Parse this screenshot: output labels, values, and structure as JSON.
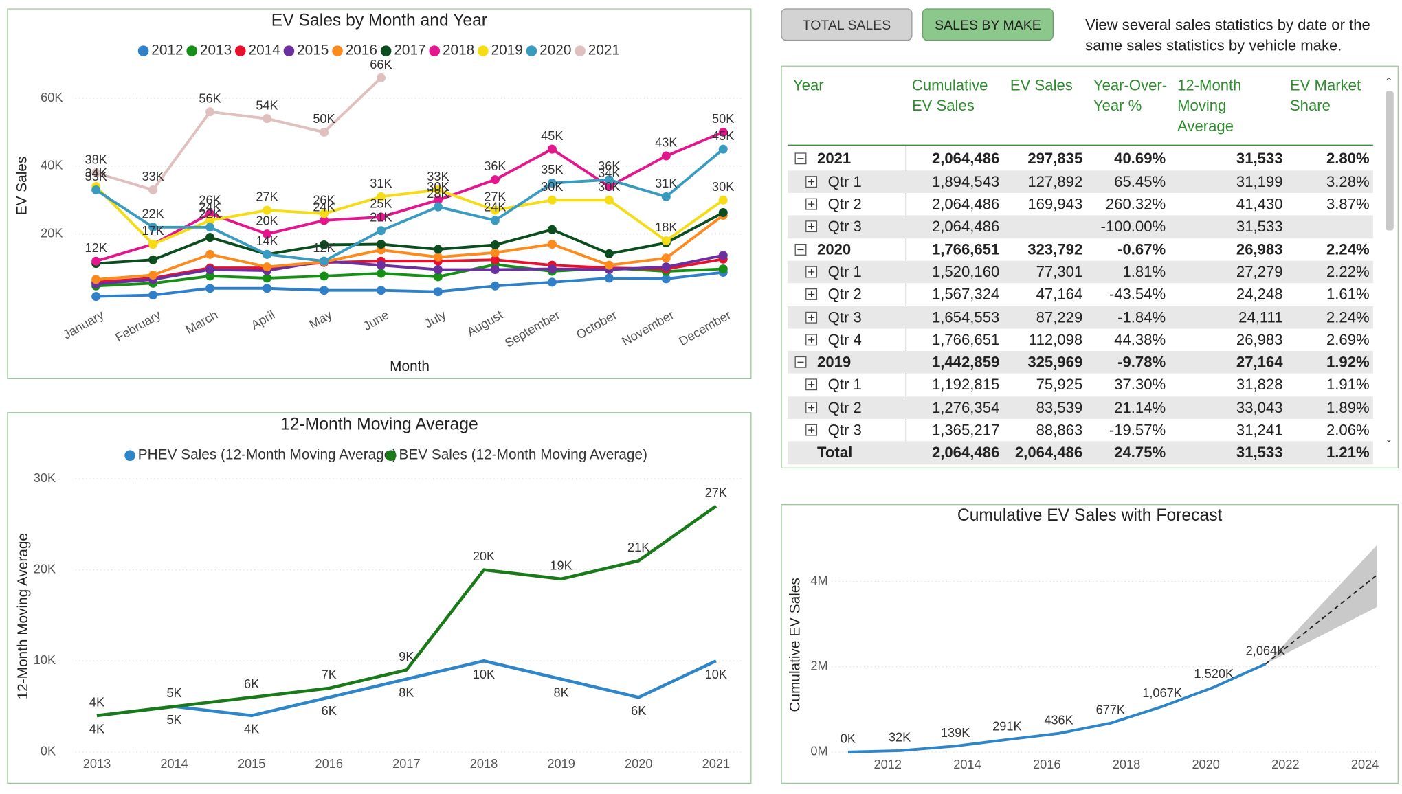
{
  "chart_data": [
    {
      "type": "line",
      "title": "EV Sales by Month and Year",
      "x_label": "Month",
      "y_label": "EV Sales",
      "markers": true,
      "grid": true,
      "categories": [
        "January",
        "February",
        "March",
        "April",
        "May",
        "June",
        "July",
        "August",
        "September",
        "October",
        "November",
        "December"
      ],
      "ylim": [
        0,
        70000
      ],
      "yticks": [
        {
          "value": 20000,
          "label": "20K"
        },
        {
          "value": 40000,
          "label": "40K"
        },
        {
          "value": 60000,
          "label": "60K"
        }
      ],
      "series": [
        {
          "name": "2012",
          "color": "#2f80c8",
          "values": [
            1600,
            2000,
            4000,
            4000,
            3400,
            3400,
            3000,
            4700,
            5800,
            7000,
            6800,
            8700
          ]
        },
        {
          "name": "2013",
          "color": "#168f16",
          "values": [
            4700,
            5500,
            7600,
            7000,
            7600,
            8400,
            7400,
            11000,
            9000,
            10000,
            9000,
            9700
          ]
        },
        {
          "name": "2014",
          "color": "#e8112d",
          "values": [
            5800,
            7000,
            10000,
            10000,
            11600,
            12000,
            12000,
            12400,
            10800,
            10000,
            9700,
            12600
          ]
        },
        {
          "name": "2015",
          "color": "#6b2fa0",
          "values": [
            5300,
            6600,
            9500,
            9200,
            12000,
            10800,
            9500,
            9500,
            9700,
            9500,
            10300,
            13700
          ]
        },
        {
          "name": "2016",
          "color": "#fd8a1c",
          "values": [
            6600,
            7900,
            14000,
            10300,
            11800,
            15300,
            13200,
            14500,
            17000,
            10800,
            12900,
            25500
          ]
        },
        {
          "name": "2017",
          "color": "#0b4d1e",
          "values": [
            11300,
            12400,
            19000,
            14000,
            16800,
            17000,
            15500,
            16800,
            21300,
            14200,
            17400,
            26300
          ]
        },
        {
          "name": "2018",
          "color": "#e3168e",
          "values": [
            12000,
            17000,
            26000,
            20000,
            24000,
            25000,
            30000,
            36000,
            45000,
            34000,
            43000,
            50000
          ],
          "value_labels": [
            "12K",
            "17K",
            "26K",
            "20K",
            "24K",
            "25K",
            "30K",
            "36K",
            "45K",
            "34K",
            "43K",
            "50K"
          ]
        },
        {
          "name": "2019",
          "color": "#f5dc14",
          "values": [
            34000,
            17000,
            24000,
            27000,
            26000,
            31000,
            33000,
            27000,
            30000,
            30000,
            18000,
            30000
          ],
          "value_labels": [
            "34K",
            "17K",
            "24K",
            "27K",
            "26K",
            "31K",
            "33K",
            "27K",
            "30K",
            "30K",
            "18K",
            "30K"
          ]
        },
        {
          "name": "2020",
          "color": "#3a9bc0",
          "values": [
            33000,
            22000,
            22000,
            14000,
            12000,
            21000,
            28000,
            24000,
            35000,
            36000,
            31000,
            45000
          ],
          "value_labels": [
            "33K",
            "22K",
            "22K",
            "14K",
            "12K",
            "21K",
            "28K",
            "24K",
            "35K",
            "36K",
            "31K",
            "45K"
          ]
        },
        {
          "name": "2021",
          "color": "#e0c0bf",
          "values": [
            38000,
            33000,
            56000,
            54000,
            50000,
            66000,
            null,
            null,
            null,
            null,
            null,
            null
          ],
          "value_labels": [
            "38K",
            "33K",
            "56K",
            "54K",
            "50K",
            "66K",
            null,
            null,
            null,
            null,
            null,
            null
          ]
        }
      ]
    },
    {
      "type": "line",
      "title": "12-Month Moving Average",
      "y_label": "12-Month Moving Average",
      "markers": false,
      "grid": true,
      "categories": [
        "2013",
        "2014",
        "2015",
        "2016",
        "2017",
        "2018",
        "2019",
        "2020",
        "2021"
      ],
      "ylim": [
        0,
        31000
      ],
      "yticks": [
        {
          "value": 0,
          "label": "0K"
        },
        {
          "value": 10000,
          "label": "10K"
        },
        {
          "value": 20000,
          "label": "20K"
        },
        {
          "value": 30000,
          "label": "30K"
        }
      ],
      "series": [
        {
          "name": "PHEV Sales (12-Month Moving Average)",
          "color": "#2e86c8",
          "values": [
            4000,
            5000,
            4000,
            6000,
            8000,
            10000,
            8000,
            6000,
            10000
          ],
          "value_labels": [
            "4K",
            "5K",
            "4K",
            "6K",
            "8K",
            "10K",
            "8K",
            "6K",
            "10K"
          ]
        },
        {
          "name": "BEV Sales (12-Month Moving Average)",
          "color": "#1a7a1a",
          "values": [
            4000,
            5000,
            6000,
            7000,
            9000,
            20000,
            19000,
            21000,
            27000
          ],
          "value_labels": [
            "4K",
            "5K",
            "6K",
            "7K",
            "9K",
            "20K",
            "19K",
            "21K",
            "27K"
          ]
        }
      ]
    },
    {
      "type": "line",
      "title": "Cumulative EV Sales with Forecast",
      "y_label": "Cumulative EV Sales",
      "grid": true,
      "color": "#2e86c8",
      "x": [
        2011,
        2012.3,
        2013.7,
        2015,
        2016.3,
        2017.6,
        2018.9,
        2020.2,
        2021.5
      ],
      "values": [
        0,
        32000,
        139000,
        291000,
        436000,
        677000,
        1067000,
        1520000,
        2064000
      ],
      "value_labels": [
        "0K",
        "32K",
        "139K",
        "291K",
        "436K",
        "677K",
        "1,067K",
        "1,520K",
        "2,064K"
      ],
      "forecast": {
        "color": "#222222",
        "band_color": "#c9c9c9",
        "x": [
          2021.5,
          2024.3
        ],
        "values": [
          2064000,
          4150000
        ],
        "lower": [
          2064000,
          3400000
        ],
        "upper": [
          2064000,
          4850000
        ]
      },
      "xlim": [
        2010.5,
        2024.4
      ],
      "xticks": [
        2012,
        2014,
        2016,
        2018,
        2020,
        2022,
        2024
      ],
      "ylim": [
        0,
        4900000
      ],
      "yticks": [
        {
          "value": 0,
          "label": "0M"
        },
        {
          "value": 2000000,
          "label": "2M"
        },
        {
          "value": 4000000,
          "label": "4M"
        }
      ]
    }
  ],
  "buttons": [
    "TOTAL SALES",
    "SALES BY MAKE"
  ],
  "description": [
    "View several sales statistics by date or the",
    "same sales statistics by vehicle make."
  ],
  "table": {
    "columns": [
      "Year",
      "Cumulative EV Sales",
      "EV Sales",
      "Year-Over-Year %",
      "12-Month Moving Average",
      "EV Market Share"
    ],
    "groups": [
      {
        "cells": [
          "2021",
          "2,064,486",
          "297,835",
          "40.69%",
          "31,533",
          "2.80%"
        ],
        "children": [
          [
            "Qtr 1",
            "1,894,543",
            "127,892",
            "65.45%",
            "31,199",
            "3.28%"
          ],
          [
            "Qtr 2",
            "2,064,486",
            "169,943",
            "260.32%",
            "41,430",
            "3.87%"
          ],
          [
            "Qtr 3",
            "2,064,486",
            null,
            "-100.00%",
            "31,533",
            null
          ]
        ]
      },
      {
        "cells": [
          "2020",
          "1,766,651",
          "323,792",
          "-0.67%",
          "26,983",
          "2.24%"
        ],
        "children": [
          [
            "Qtr 1",
            "1,520,160",
            "77,301",
            "1.81%",
            "27,279",
            "2.22%"
          ],
          [
            "Qtr 2",
            "1,567,324",
            "47,164",
            "-43.54%",
            "24,248",
            "1.61%"
          ],
          [
            "Qtr 3",
            "1,654,553",
            "87,229",
            "-1.84%",
            "24,111",
            "2.24%"
          ],
          [
            "Qtr 4",
            "1,766,651",
            "112,098",
            "44.38%",
            "26,983",
            "2.69%"
          ]
        ]
      },
      {
        "cells": [
          "2019",
          "1,442,859",
          "325,969",
          "-9.78%",
          "27,164",
          "1.92%"
        ],
        "children": [
          [
            "Qtr 1",
            "1,192,815",
            "75,925",
            "37.30%",
            "31,828",
            "1.91%"
          ],
          [
            "Qtr 2",
            "1,276,354",
            "83,539",
            "21.14%",
            "33,043",
            "1.89%"
          ],
          [
            "Qtr 3",
            "1,365,217",
            "88,863",
            "-19.57%",
            "31,241",
            "2.06%"
          ]
        ]
      }
    ],
    "total": [
      "Total",
      "2,064,486",
      "2,064,486",
      "24.75%",
      "31,533",
      "1.21%"
    ]
  }
}
